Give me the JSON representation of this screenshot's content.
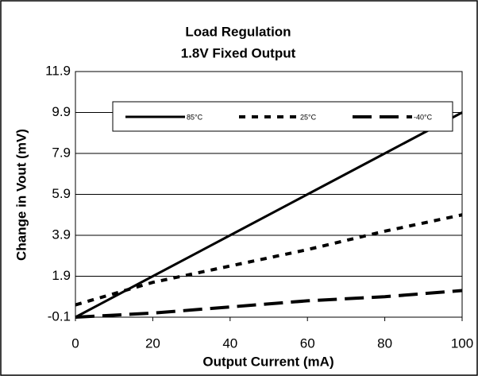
{
  "chart_data": {
    "type": "line",
    "title": "Load Regulation",
    "subtitle": "1.8V Fixed Output",
    "x_label": "Output Current (mA)",
    "y_label": "Change in Vout (mV)",
    "x": [
      0,
      20,
      40,
      60,
      80,
      100
    ],
    "series": [
      {
        "name": "85°C",
        "color": "#000000",
        "dash": "solid",
        "values": [
          -0.1,
          1.9,
          3.9,
          5.9,
          7.9,
          9.9
        ]
      },
      {
        "name": "25°C",
        "color": "#000000",
        "dash": "short",
        "values": [
          0.5,
          1.6,
          2.4,
          3.2,
          4.1,
          4.9
        ]
      },
      {
        "name": "-40°C",
        "color": "#000000",
        "dash": "long",
        "values": [
          -0.1,
          0.1,
          0.4,
          0.7,
          0.9,
          1.2
        ]
      }
    ],
    "xlim": [
      0,
      100
    ],
    "xticks": [
      0,
      20,
      40,
      60,
      80,
      100
    ],
    "ylim": [
      -0.1,
      11.9
    ],
    "yticks": [
      -0.1,
      1.9,
      3.9,
      5.9,
      7.9,
      9.9,
      11.9
    ],
    "grid": true,
    "legend": "top"
  }
}
